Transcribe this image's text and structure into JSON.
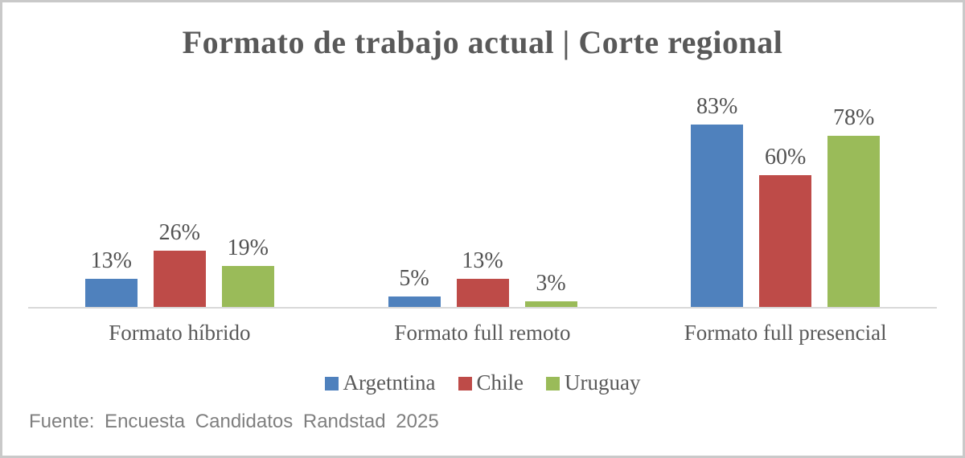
{
  "chart_data": {
    "type": "bar",
    "title": "Formato de trabajo actual | Corte regional",
    "categories": [
      "Formato híbrido",
      "Formato full remoto",
      "Formato full presencial"
    ],
    "series": [
      {
        "name": "Argetntina",
        "color": "#4F81BD",
        "values": [
          13,
          5,
          83
        ],
        "labels": [
          "13%",
          "5%",
          "83%"
        ]
      },
      {
        "name": "Chile",
        "color": "#BE4B48",
        "values": [
          26,
          13,
          60
        ],
        "labels": [
          "26%",
          "13%",
          "60%"
        ]
      },
      {
        "name": "Uruguay",
        "color": "#9ABB59",
        "values": [
          19,
          3,
          78
        ],
        "labels": [
          "19%",
          "3%",
          "78%"
        ]
      }
    ],
    "xlabel": "",
    "ylabel": "",
    "ylim": [
      0,
      100
    ],
    "grid": false,
    "data_labels": true,
    "legend_position": "bottom"
  },
  "source": {
    "text": "Fuente: Encuesta Candidatos Randstad 2025"
  },
  "colors": {
    "title_text": "#595959",
    "label_text": "#525252",
    "axis_line": "#D9D9D9",
    "source_text": "#7F7F7F",
    "frame_border": "#C9C9C9",
    "background": "#FFFFFF"
  }
}
